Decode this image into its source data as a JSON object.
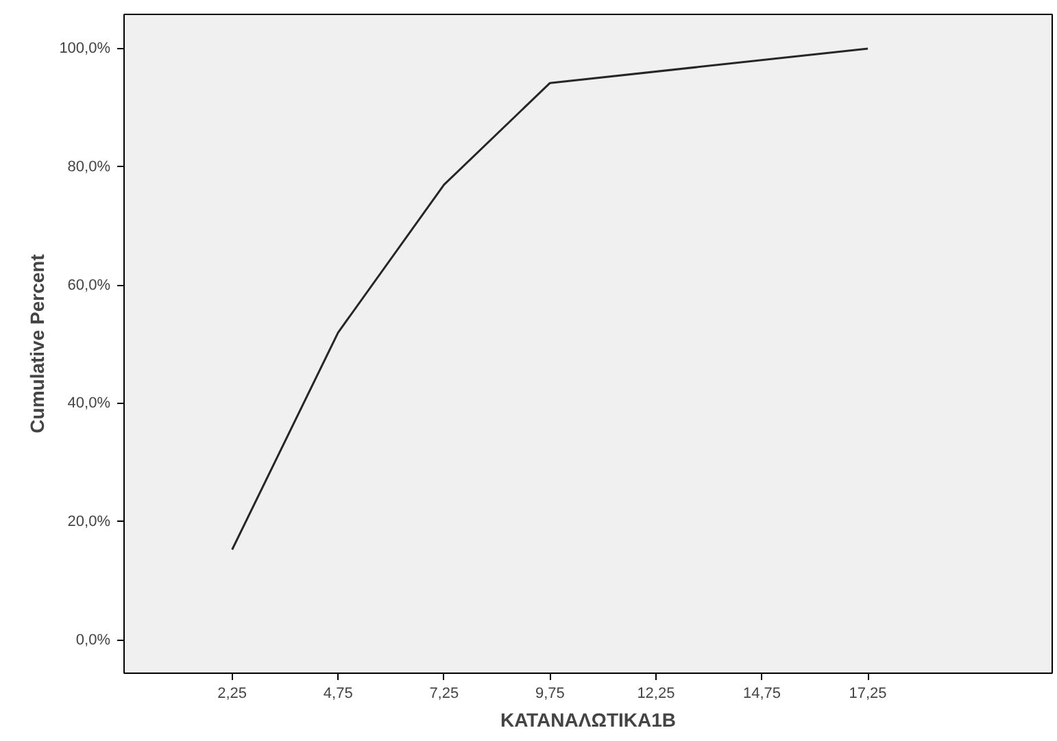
{
  "chart_data": {
    "type": "line",
    "xlabel": "ΚΑΤΑΝΑΛΩΤΙΚΑ1Β",
    "ylabel": "Cumulative Percent",
    "x": [
      2.25,
      4.75,
      7.25,
      9.75,
      17.25
    ],
    "series": [
      {
        "color": "#262626",
        "values": [
          15.3,
          52.0,
          77.0,
          94.2,
          100.0
        ]
      }
    ],
    "xlim": [
      -0.3,
      21.6
    ],
    "ylim": [
      -5.6,
      105.8
    ],
    "xticks": [
      {
        "value": 2.25,
        "label": "2,25"
      },
      {
        "value": 4.75,
        "label": "4,75"
      },
      {
        "value": 7.25,
        "label": "7,25"
      },
      {
        "value": 9.75,
        "label": "9,75"
      },
      {
        "value": 12.25,
        "label": "12,25"
      },
      {
        "value": 14.75,
        "label": "14,75"
      },
      {
        "value": 17.25,
        "label": "17,25"
      }
    ],
    "yticks": [
      {
        "value": 0,
        "label": "0,0%"
      },
      {
        "value": 20,
        "label": "20,0%"
      },
      {
        "value": 40,
        "label": "40,0%"
      },
      {
        "value": 60,
        "label": "60,0%"
      },
      {
        "value": 80,
        "label": "80,0%"
      },
      {
        "value": 100,
        "label": "100,0%"
      }
    ],
    "line_style": "solid"
  }
}
